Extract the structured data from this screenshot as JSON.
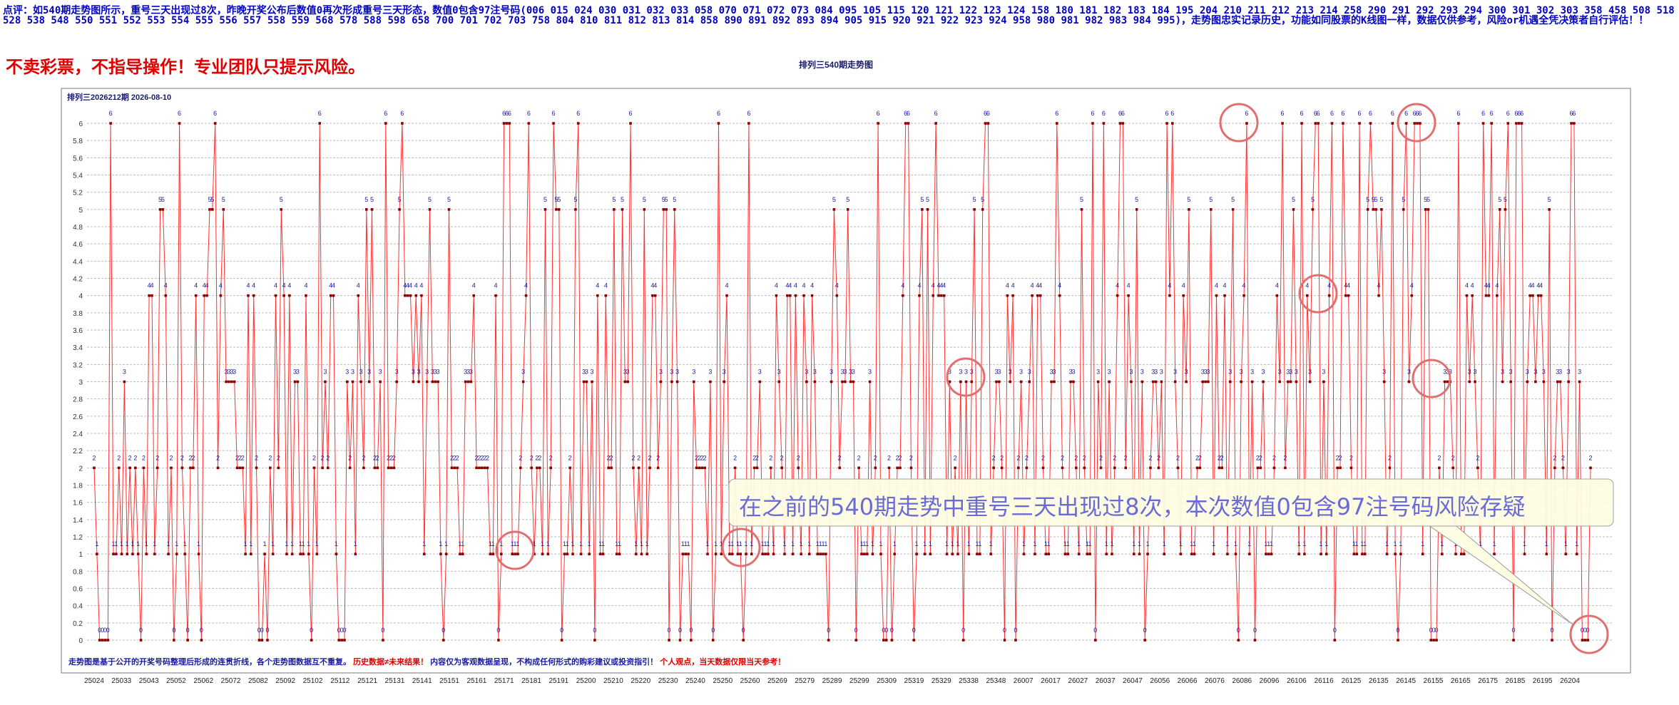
{
  "header": {
    "note": "点评：如540期走势图所示，重号三天出现过8次，昨晚开奖公布后数值0再次形成重号三天形态，数值0包含97注号码(006 015 024 030 031 032 033 058 070 071 072 073 084 095 105 115 120 121 122 123 124 158 180 181 182 183 184 195 204 210 211 212 213 214 258 290 291 292 293 294 300 301 302 303 358 458 508 518 528 538 548 550 551 552 553 554 555 556 557 558 559 568 578 588 598 658 700 701 702 703 758 804 810 811 812 813 814 858 890 891 892 893 894 905 915 920 921 922 923 924 958 980 981 982 983 984 995)，走势图忠实记录历史，功能如同股票的K线图一样，数据仅供参考，风险or机遇全凭决策者自行评估！！",
    "warning": "不卖彩票，不指导操作！专业团队只提示风险。",
    "chart_title": "排列三540期走势图"
  },
  "chart_data": {
    "type": "line",
    "inner_title": "排列三2026212期 2026-08-10",
    "ylim": [
      0,
      6
    ],
    "y_ticks": [
      0,
      0.2,
      0.4,
      0.6,
      0.8,
      1,
      1.2,
      1.4,
      1.6,
      1.8,
      2,
      2.2,
      2.4,
      2.6,
      2.8,
      3,
      3.2,
      3.4,
      3.6,
      3.8,
      4,
      4.2,
      4.4,
      4.6,
      4.8,
      5,
      5.2,
      5.4,
      5.6,
      5.8,
      6
    ],
    "x_ticks": [
      "25024",
      "25033",
      "25043",
      "25052",
      "25062",
      "25072",
      "25082",
      "25092",
      "25102",
      "25112",
      "25121",
      "25131",
      "25141",
      "25151",
      "25161",
      "25171",
      "25181",
      "25191",
      "25200",
      "25210",
      "25220",
      "25230",
      "25240",
      "25250",
      "25260",
      "25269",
      "25279",
      "25289",
      "25299",
      "25309",
      "25319",
      "25329",
      "25338",
      "25348",
      "26007",
      "26017",
      "26027",
      "26037",
      "26047",
      "26056",
      "26066",
      "26076",
      "26086",
      "26096",
      "26106",
      "26116",
      "26125",
      "26135",
      "26145",
      "26155",
      "26165",
      "26175",
      "26185",
      "26195",
      "26204"
    ],
    "values": [
      2,
      1,
      0,
      0,
      0,
      0,
      6,
      1,
      1,
      2,
      1,
      3,
      1,
      2,
      1,
      2,
      1,
      0,
      2,
      1,
      4,
      4,
      1,
      2,
      5,
      5,
      4,
      1,
      2,
      0,
      1,
      6,
      2,
      1,
      0,
      2,
      2,
      4,
      1,
      0,
      4,
      4,
      5,
      5,
      6,
      2,
      4,
      5,
      3,
      3,
      3,
      3,
      2,
      2,
      2,
      1,
      4,
      1,
      4,
      2,
      0,
      0,
      1,
      0,
      2,
      1,
      4,
      2,
      5,
      4,
      1,
      4,
      1,
      3,
      3,
      1,
      1,
      4,
      1,
      0,
      2,
      1,
      6,
      2,
      3,
      2,
      4,
      4,
      1,
      0,
      0,
      0,
      3,
      2,
      3,
      1,
      4,
      3,
      2,
      5,
      3,
      5,
      2,
      2,
      3,
      0,
      6,
      2,
      2,
      2,
      3,
      5,
      6,
      4,
      4,
      4,
      3,
      4,
      3,
      4,
      1,
      3,
      5,
      3,
      3,
      3,
      1,
      0,
      1,
      5,
      2,
      2,
      2,
      1,
      1,
      3,
      3,
      3,
      4,
      2,
      2,
      2,
      2,
      2,
      1,
      1,
      4,
      0,
      1,
      6,
      6,
      6,
      1,
      1,
      1,
      2,
      3,
      4,
      6,
      2,
      1,
      2,
      2,
      1,
      5,
      1,
      2,
      6,
      5,
      5,
      0,
      1,
      1,
      2,
      1,
      5,
      6,
      1,
      3,
      3,
      1,
      3,
      0,
      4,
      1,
      1,
      4,
      2,
      2,
      5,
      1,
      1,
      5,
      3,
      3,
      6,
      2,
      1,
      2,
      1,
      5,
      1,
      2,
      4,
      4,
      2,
      3,
      5,
      5,
      0,
      3,
      5,
      3,
      0,
      1,
      1,
      1,
      0,
      3,
      2,
      2,
      2,
      2,
      1,
      3,
      0,
      1,
      6,
      1,
      3,
      4,
      1,
      1,
      2,
      1,
      1,
      0,
      1,
      6,
      1,
      2,
      2,
      3,
      1,
      1,
      1,
      2,
      1,
      4,
      3,
      2,
      1,
      4,
      4,
      1,
      4,
      2,
      1,
      4,
      3,
      1,
      4,
      3,
      1,
      1,
      1,
      1,
      0,
      3,
      5,
      4,
      2,
      3,
      3,
      5,
      3,
      3,
      0,
      2,
      1,
      1,
      1,
      3,
      1,
      2,
      6,
      1,
      0,
      0,
      2,
      0,
      1,
      2,
      2,
      4,
      6,
      6,
      2,
      0,
      1,
      4,
      5,
      1,
      5,
      1,
      4,
      6,
      4,
      4,
      4,
      1,
      3,
      1,
      2,
      1,
      3,
      0,
      3,
      1,
      3,
      5,
      1,
      1,
      5,
      6,
      6,
      1,
      2,
      3,
      3,
      2,
      0,
      4,
      3,
      4,
      0,
      2,
      3,
      1,
      2,
      3,
      4,
      1,
      4,
      4,
      2,
      1,
      1,
      3,
      3,
      6,
      4,
      2,
      1,
      1,
      3,
      3,
      2,
      1,
      5,
      2,
      1,
      1,
      6,
      0,
      3,
      2,
      6,
      1,
      3,
      1,
      2,
      4,
      6,
      6,
      2,
      4,
      3,
      1,
      5,
      1,
      3,
      0,
      1,
      2,
      3,
      3,
      2,
      3,
      1,
      6,
      4,
      6,
      3,
      2,
      1,
      4,
      3,
      5,
      1,
      1,
      2,
      2,
      3,
      3,
      3,
      5,
      1,
      4,
      2,
      2,
      4,
      1,
      3,
      5,
      1,
      0,
      3,
      4,
      6,
      1,
      3,
      0,
      2,
      2,
      3,
      1,
      1,
      1,
      2,
      4,
      3,
      6,
      2,
      3,
      3,
      5,
      3,
      1,
      6,
      1,
      4,
      3,
      5,
      6,
      6,
      1,
      3,
      1,
      4,
      6,
      0,
      2,
      2,
      6,
      4,
      4,
      2,
      1,
      1,
      6,
      1,
      1,
      5,
      6,
      5,
      5,
      4,
      5,
      3,
      1,
      2,
      6,
      1,
      0,
      1,
      5,
      6,
      3,
      4,
      6,
      6,
      6,
      1,
      5,
      5,
      0,
      0,
      0,
      2,
      1,
      3,
      3,
      3,
      2,
      1,
      6,
      1,
      1,
      4,
      3,
      4,
      3,
      2,
      1,
      6,
      4,
      4,
      6,
      1,
      4,
      5,
      3,
      5,
      6,
      3,
      0,
      6,
      6,
      6,
      1,
      3,
      4,
      4,
      3,
      4,
      4,
      3,
      1,
      5,
      0,
      2,
      3,
      3,
      2,
      1,
      3,
      6,
      6,
      1,
      3,
      0,
      0,
      0,
      2
    ]
  },
  "callout": {
    "text": "在之前的540期走势中重号三天出现过8次，本次数值0包含97注号码风险存疑"
  },
  "footer": {
    "text_blue": "走势图是基于公开的开奖号码整理后形成的连贯折线，各个走势图数据互不重复。",
    "text_red1": "历史数据≠未来结果！",
    "text_blue2": "内容仅为客观数据呈现，不构成任何形式的购彩建议或投资指引！",
    "text_red2": "个人观点，当天数据仅限当天参考！"
  },
  "colors": {
    "line": "#ff3030",
    "marker": "#8b0000",
    "label": "#1a1aa0",
    "grid": "#bdbdbd",
    "highlight": "#e07070"
  }
}
